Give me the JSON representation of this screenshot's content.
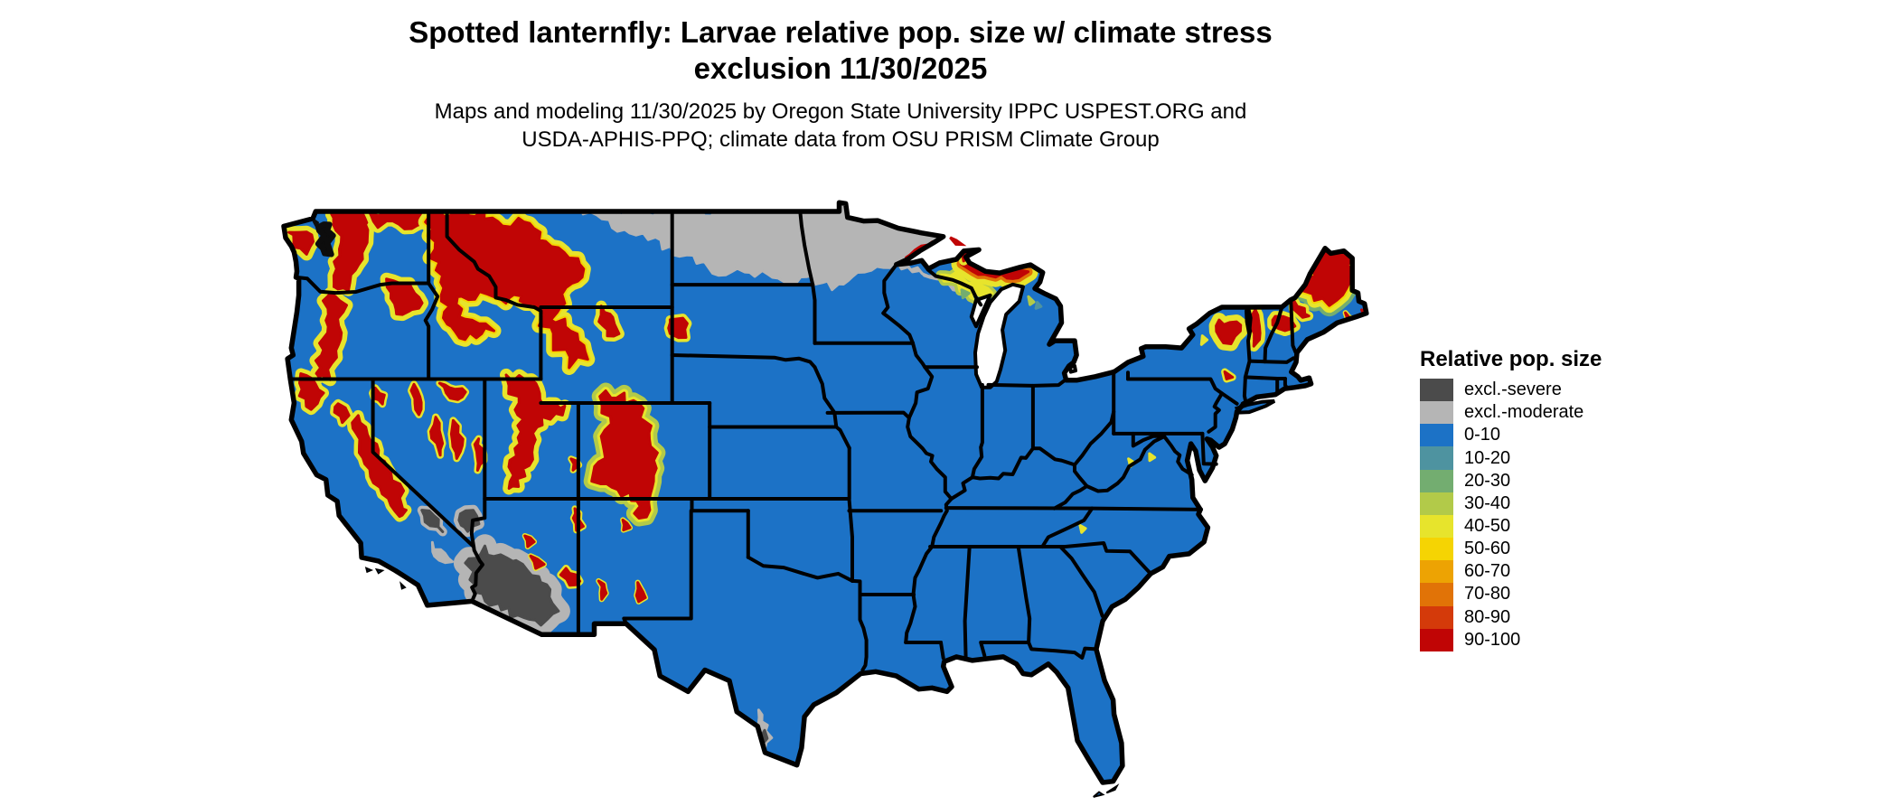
{
  "header": {
    "title_line1": "Spotted lanternfly: Larvae relative pop. size w/ climate stress",
    "title_line2": "exclusion 11/30/2025",
    "subtitle_line1": "Maps and modeling 11/30/2025 by Oregon State University IPPC USPEST.ORG and",
    "subtitle_line2": "USDA-APHIS-PPQ; climate data from OSU PRISM Climate Group"
  },
  "legend": {
    "title": "Relative pop. size",
    "items": [
      {
        "key": "excl_severe",
        "label": "excl.-severe",
        "color": "#4b4b4b"
      },
      {
        "key": "excl_moderate",
        "label": "excl.-moderate",
        "color": "#b5b5b5"
      },
      {
        "key": "r0_10",
        "label": "0-10",
        "color": "#1c72c6"
      },
      {
        "key": "r10_20",
        "label": "10-20",
        "color": "#4e93a0"
      },
      {
        "key": "r20_30",
        "label": "20-30",
        "color": "#73ad70"
      },
      {
        "key": "r30_40",
        "label": "30-40",
        "color": "#b2ca49"
      },
      {
        "key": "r40_50",
        "label": "40-50",
        "color": "#e7e42c"
      },
      {
        "key": "r50_60",
        "label": "50-60",
        "color": "#f5d403"
      },
      {
        "key": "r60_70",
        "label": "60-70",
        "color": "#eda303"
      },
      {
        "key": "r70_80",
        "label": "70-80",
        "color": "#e17307"
      },
      {
        "key": "r80_90",
        "label": "80-90",
        "color": "#d43a0a"
      },
      {
        "key": "r90_100",
        "label": "90-100",
        "color": "#c00505"
      }
    ]
  },
  "map": {
    "background": "#ffffff",
    "water": "#ffffff",
    "border_color": "#000000",
    "coast_ink": "#0d0d0d",
    "base_class": "0-10"
  }
}
